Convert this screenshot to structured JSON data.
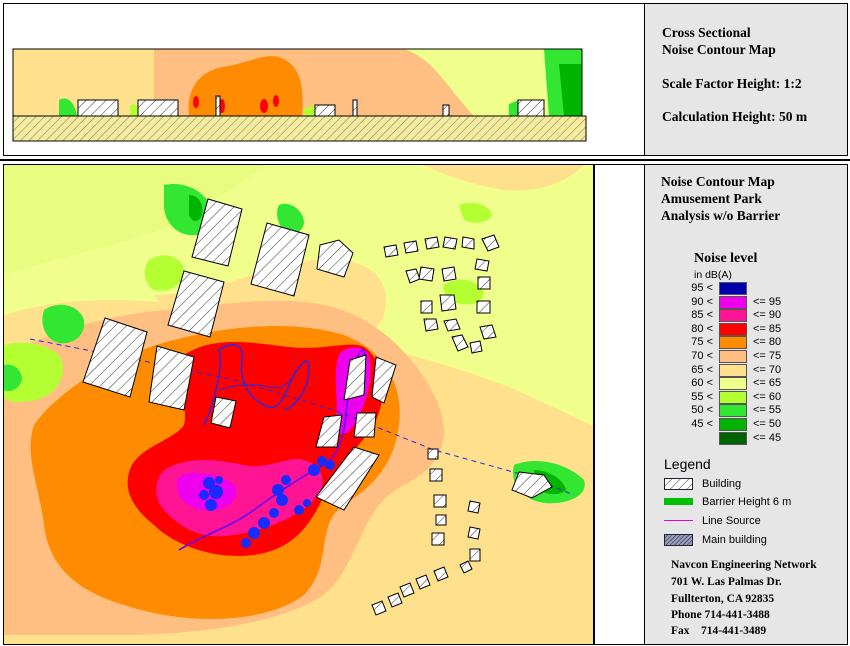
{
  "top_panel": {
    "title_line1": "Cross Sectional",
    "title_line2": "Noise Contour Map",
    "scale_label": "Scale Factor Height:  1:2",
    "calc_label": "Calculation Height: 50 m"
  },
  "main_panel": {
    "title_line1": "Noise Contour Map",
    "title_line2": "Amusement Park",
    "title_line3": "Analysis w/o Barrier"
  },
  "noise_legend": {
    "title": "Noise level",
    "unit": "in dB(A)",
    "levels": [
      {
        "lo": "95 <",
        "hi": "",
        "color": "#0000aa"
      },
      {
        "lo": "90 <",
        "hi": "<=  95",
        "color": "#ee00ee"
      },
      {
        "lo": "85 <",
        "hi": "<=  90",
        "color": "#ff1493"
      },
      {
        "lo": "80 <",
        "hi": "<=  85",
        "color": "#ff0000"
      },
      {
        "lo": "75 <",
        "hi": "<=  80",
        "color": "#ff8c00"
      },
      {
        "lo": "70 <",
        "hi": "<=  75",
        "color": "#ffbe82"
      },
      {
        "lo": "65 <",
        "hi": "<=  70",
        "color": "#ffe08c"
      },
      {
        "lo": "60 <",
        "hi": "<=  65",
        "color": "#f0ff8c"
      },
      {
        "lo": "55 <",
        "hi": "<=  60",
        "color": "#b4ff32"
      },
      {
        "lo": "50 <",
        "hi": "<=  55",
        "color": "#32e632"
      },
      {
        "lo": "45 <",
        "hi": "<=  50",
        "color": "#00b400"
      },
      {
        "lo": "",
        "hi": "<=  45",
        "color": "#006400"
      }
    ]
  },
  "legend": {
    "title": "Legend",
    "items": {
      "building": "Building",
      "barrier": "Barrier Height 6 m",
      "line_source": "Line Source",
      "main_building": "Main building"
    }
  },
  "company": {
    "name": "Navcon Engineering Network",
    "address1": "701 W. Las Palmas Dr.",
    "address2": "Fullterton, CA 92835",
    "phone": "Phone 714-441-3488",
    "fax": "Fax    714-441-3489"
  }
}
